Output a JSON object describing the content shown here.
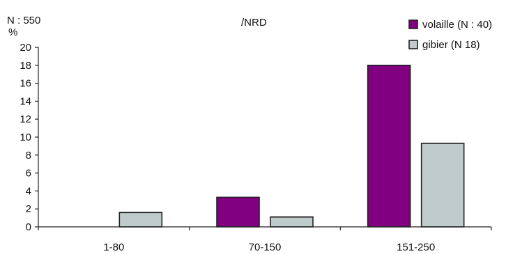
{
  "chart_data": {
    "type": "bar",
    "title": "/NRD",
    "n_total_label": "N : 550",
    "ylabel": "%",
    "categories": [
      "1-80",
      "70-150",
      "151-250"
    ],
    "series": [
      {
        "name": "volaille (N : 40)",
        "color": "#800080",
        "values": [
          0,
          3.3,
          18
        ]
      },
      {
        "name": "gibier (N 18)",
        "color": "#c0cccc",
        "values": [
          1.6,
          1.1,
          9.3
        ]
      }
    ],
    "ylim": [
      0,
      20
    ],
    "yticks": [
      "0",
      "2",
      "4",
      "6",
      "8",
      "10",
      "12",
      "14",
      "16",
      "18",
      "20"
    ],
    "grid": false,
    "legend_position": "top-right"
  }
}
